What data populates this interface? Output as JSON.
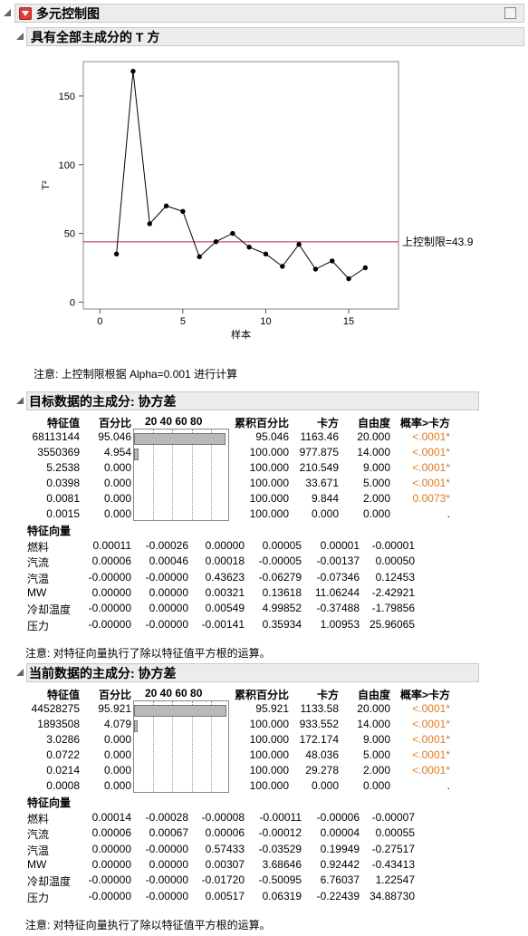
{
  "report_title": "多元控制图",
  "t2_section": {
    "title": "具有全部主成分的 T 方",
    "ylabel": "T²",
    "xlabel": "样本",
    "ucl_label": "上控制限=43.9",
    "note": "注意: 上控制限根据 Alpha=0.001 进行计算"
  },
  "chart_data": {
    "type": "line",
    "title": "",
    "xlabel": "样本",
    "ylabel": "T²",
    "x": [
      1,
      2,
      3,
      4,
      5,
      6,
      7,
      8,
      9,
      10,
      11,
      12,
      13,
      14,
      15,
      16
    ],
    "values": [
      35,
      168,
      57,
      70,
      66,
      33,
      44,
      50,
      40,
      35,
      26,
      42,
      24,
      30,
      17,
      25
    ],
    "ucl": 43.9,
    "xlim": [
      -1,
      18
    ],
    "ylim": [
      -5,
      175
    ],
    "xticks": [
      0,
      5,
      10,
      15
    ],
    "yticks": [
      0,
      50,
      100,
      150
    ],
    "line_color": "#000000",
    "ucl_color": "#c0203a"
  },
  "target_section": {
    "title": "目标数据的主成分: 协方差",
    "headers": [
      "特征值",
      "百分比",
      "20 40 60 80",
      "累积百分比",
      "卡方",
      "自由度",
      "概率>卡方"
    ],
    "rows": [
      [
        "68113144",
        "95.046",
        "95.046",
        "1163.46",
        "20.000",
        "<.0001*"
      ],
      [
        "3550369",
        "4.954",
        "100.000",
        "977.875",
        "14.000",
        "<.0001*"
      ],
      [
        "5.2538",
        "0.000",
        "100.000",
        "210.549",
        "9.000",
        "<.0001*"
      ],
      [
        "0.0398",
        "0.000",
        "100.000",
        "33.671",
        "5.000",
        "<.0001*"
      ],
      [
        "0.0081",
        "0.000",
        "100.000",
        "9.844",
        "2.000",
        "0.0073*"
      ],
      [
        "0.0015",
        "0.000",
        "100.000",
        "0.000",
        "0.000",
        "."
      ]
    ],
    "eigvec_title": "特征向量",
    "eigvec_rows": [
      [
        "燃料",
        "0.00011",
        "-0.00026",
        "0.00000",
        "0.00005",
        "0.00001",
        "-0.00001"
      ],
      [
        "汽流",
        "0.00006",
        "0.00046",
        "0.00018",
        "-0.00005",
        "-0.00137",
        "0.00050"
      ],
      [
        "汽温",
        "-0.00000",
        "-0.00000",
        "0.43623",
        "-0.06279",
        "-0.07346",
        "0.12453"
      ],
      [
        "MW",
        "0.00000",
        "0.00000",
        "0.00321",
        "0.13618",
        "11.06244",
        "-2.42921"
      ],
      [
        "冷却温度",
        "-0.00000",
        "0.00000",
        "0.00549",
        "4.99852",
        "-0.37488",
        "-1.79856"
      ],
      [
        "压力",
        "-0.00000",
        "-0.00000",
        "-0.00141",
        "0.35934",
        "1.00953",
        "25.96065"
      ]
    ],
    "note": "注意: 对特征向量执行了除以特征值平方根的运算。"
  },
  "current_section": {
    "title": "当前数据的主成分: 协方差",
    "headers": [
      "特征值",
      "百分比",
      "20 40 60 80",
      "累积百分比",
      "卡方",
      "自由度",
      "概率>卡方"
    ],
    "rows": [
      [
        "44528275",
        "95.921",
        "95.921",
        "1133.58",
        "20.000",
        "<.0001*"
      ],
      [
        "1893508",
        "4.079",
        "100.000",
        "933.552",
        "14.000",
        "<.0001*"
      ],
      [
        "3.0286",
        "0.000",
        "100.000",
        "172.174",
        "9.000",
        "<.0001*"
      ],
      [
        "0.0722",
        "0.000",
        "100.000",
        "48.036",
        "5.000",
        "<.0001*"
      ],
      [
        "0.0214",
        "0.000",
        "100.000",
        "29.278",
        "2.000",
        "<.0001*"
      ],
      [
        "0.0008",
        "0.000",
        "100.000",
        "0.000",
        "0.000",
        "."
      ]
    ],
    "eigvec_title": "特征向量",
    "eigvec_rows": [
      [
        "燃料",
        "0.00014",
        "-0.00028",
        "-0.00008",
        "-0.00011",
        "-0.00006",
        "-0.00007"
      ],
      [
        "汽流",
        "0.00006",
        "0.00067",
        "0.00006",
        "-0.00012",
        "0.00004",
        "0.00055"
      ],
      [
        "汽温",
        "0.00000",
        "-0.00000",
        "0.57433",
        "-0.03529",
        "0.19949",
        "-0.27517"
      ],
      [
        "MW",
        "0.00000",
        "0.00000",
        "0.00307",
        "3.68646",
        "0.92442",
        "-0.43413"
      ],
      [
        "冷却温度",
        "-0.00000",
        "-0.00000",
        "-0.01720",
        "-0.50095",
        "6.76037",
        "1.22547"
      ],
      [
        "压力",
        "-0.00000",
        "-0.00000",
        "0.00517",
        "0.06319",
        "-0.22439",
        "34.88730"
      ]
    ],
    "note": "注意: 对特征向量执行了除以特征值平方根的运算。"
  }
}
